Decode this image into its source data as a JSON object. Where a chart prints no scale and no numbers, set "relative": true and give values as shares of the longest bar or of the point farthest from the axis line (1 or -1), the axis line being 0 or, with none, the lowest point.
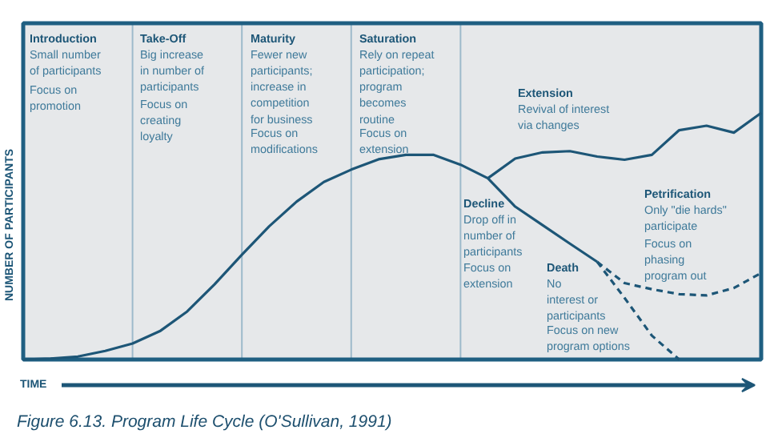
{
  "chart_data": {
    "type": "line",
    "relative": true,
    "tick_labels": false,
    "xlabel": "TIME",
    "ylabel": "NUMBER OF PARTICIPANTS",
    "categories": [
      null,
      null,
      null,
      null,
      null,
      null,
      null,
      null,
      null,
      null,
      null,
      null,
      null,
      null,
      null,
      null,
      null,
      null,
      null,
      null,
      null,
      null,
      null,
      null,
      null,
      null,
      null,
      null
    ],
    "grid": "x",
    "series": [
      {
        "color": "#1d5677",
        "line_style": "solid",
        "values": [
          0,
          0.004,
          0.012,
          0.035,
          0.065,
          0.115,
          0.195,
          0.305,
          0.425,
          0.54,
          0.64,
          0.72,
          0.77,
          0.812,
          0.83,
          0.83,
          0.79,
          0.735,
          0.62,
          0.545,
          0.47,
          0.396,
          null,
          null,
          null,
          null,
          null,
          null
        ]
      },
      {
        "color": "#1d5677",
        "line_style": "solid",
        "values": [
          null,
          null,
          null,
          null,
          null,
          null,
          null,
          null,
          null,
          null,
          null,
          null,
          null,
          null,
          null,
          null,
          null,
          0.735,
          0.815,
          0.84,
          0.845,
          0.823,
          0.81,
          0.83,
          0.93,
          0.948,
          0.92,
          1.0
        ]
      },
      {
        "color": "#1d5677",
        "line_style": "dashed",
        "values": [
          null,
          null,
          null,
          null,
          null,
          null,
          null,
          null,
          null,
          null,
          null,
          null,
          null,
          null,
          null,
          null,
          null,
          null,
          null,
          null,
          null,
          0.396,
          0.25,
          0.097,
          0,
          null,
          null,
          null
        ]
      },
      {
        "color": "#1d5677",
        "line_style": "dashed",
        "values": [
          null,
          null,
          null,
          null,
          null,
          null,
          null,
          null,
          null,
          null,
          null,
          null,
          null,
          null,
          null,
          null,
          null,
          null,
          null,
          null,
          null,
          0.396,
          0.31,
          0.285,
          0.265,
          0.26,
          0.29,
          0.351
        ]
      }
    ],
    "annotations": [
      "Introduction",
      "Small number\nof participants",
      "Focus on\npromotion",
      "Take-Off",
      "Big increase\nin number of\nparticipants",
      "Focus on\ncreating\nloyalty",
      "Maturity",
      "Fewer new\nparticipants;\nincrease in\ncompetition\nfor business",
      "Focus on\nmodifications",
      "Saturation",
      "Rely on repeat\nparticipation;\nprogram\nbecomes\nroutine",
      "Focus on\nextension",
      "Extension",
      "Revival of interest\nvia changes",
      "Decline",
      "Drop off in\nnumber of\nparticipants",
      "Focus on\nextension",
      "Death",
      "No\ninterest or\nparticipants",
      "Focus on new\nprogram options",
      "Petrification",
      "Only \"die hards\"\nparticipate",
      "Focus on\nphasing\nprogram out",
      "Figure 6.13. Program Life Cycle (O'Sullivan, 1991)"
    ]
  }
}
